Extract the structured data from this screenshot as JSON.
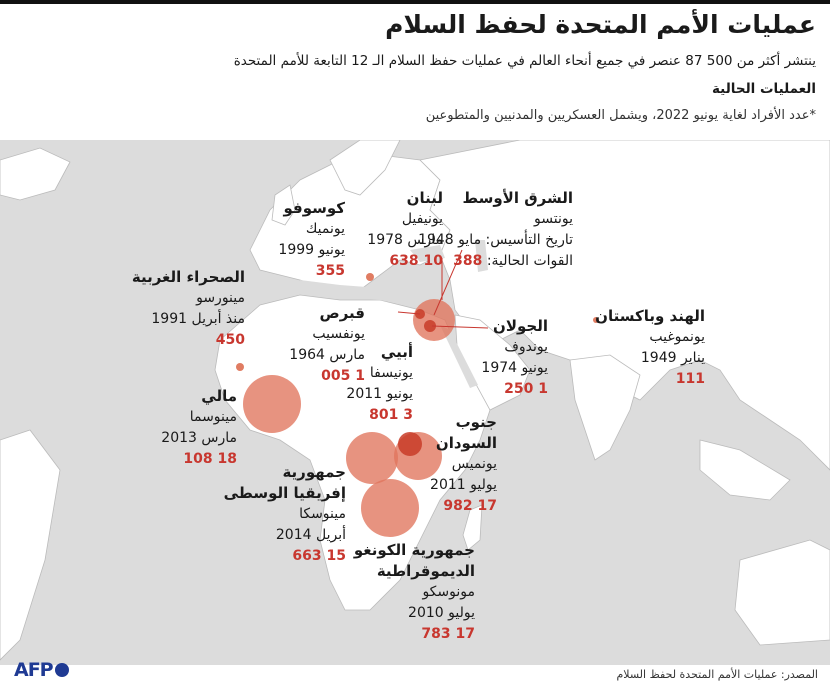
{
  "header": {
    "title": "عمليات الأمم المتحدة لحفظ السلام",
    "subtitle": "ينتشر أكثر من 500 87 عنصر في جميع أنحاء العالم في عمليات حفظ السلام الـ 12 التابعة للأمم المتحدة",
    "section": "العمليات الحالية",
    "note": "*عدد الأفراد لغاية يونيو 2022، ويشمل العسكريين والمدنيين والمتطوعين"
  },
  "missions": {
    "middle_east": {
      "name": "الشرق الأوسط",
      "code": "يونتسو",
      "date": "تاريخ التأسيس: مايو 1948",
      "forces_label": "القوات الحالية:",
      "value": "388"
    },
    "lebanon": {
      "name": "لبنان",
      "code": "يونيفيل",
      "date": "مارس 1978",
      "value": "10 638"
    },
    "kosovo": {
      "name": "كوسوفو",
      "code": "يونميك",
      "date": "يونيو 1999",
      "value": "355"
    },
    "western_sahara": {
      "name": "الصحراء الغربية",
      "code": "مينورسو",
      "date": "منذ أبريل 1991",
      "value": "450"
    },
    "cyprus": {
      "name": "قبرص",
      "code": "يونفسيب",
      "date": "مارس 1964",
      "value": "1 005"
    },
    "golan": {
      "name": "الجولان",
      "code": "يوندوف",
      "date": "يونيو 1974",
      "value": "1 250"
    },
    "india_pakistan": {
      "name": "الهند وباكستان",
      "code": "يونموغيب",
      "date": "يناير 1949",
      "value": "111"
    },
    "abyei": {
      "name": "أبيي",
      "code": "يونيسفا",
      "date": "يونيو 2011",
      "value": "3 801"
    },
    "mali": {
      "name": "مالي",
      "code": "مينوسما",
      "date": "مارس 2013",
      "value": "18 108"
    },
    "south_sudan": {
      "name_line1": "جنوب",
      "name_line2": "السودان",
      "code": "يونميس",
      "date": "يوليو 2011",
      "value": "17 982"
    },
    "car": {
      "name_line1": "جمهورية",
      "name_line2": "إفريقيا الوسطى",
      "code": "مينوسكا",
      "date": "أبريل 2014",
      "value": "15 663"
    },
    "drc": {
      "name_line1": "جمهورية الكونغو",
      "name_line2": "الديموقراطية",
      "code": "مونوسكو",
      "date": "يوليو 2010",
      "value": "17 783"
    }
  },
  "footer": {
    "source": "المصدر: عمليات الأمم المتحدة لحفظ السلام",
    "agency": "AFP"
  },
  "colors": {
    "bubble": "#e0745c",
    "value": "#c8372f",
    "land": "#ffffff",
    "sea": "#dcdcdc"
  }
}
